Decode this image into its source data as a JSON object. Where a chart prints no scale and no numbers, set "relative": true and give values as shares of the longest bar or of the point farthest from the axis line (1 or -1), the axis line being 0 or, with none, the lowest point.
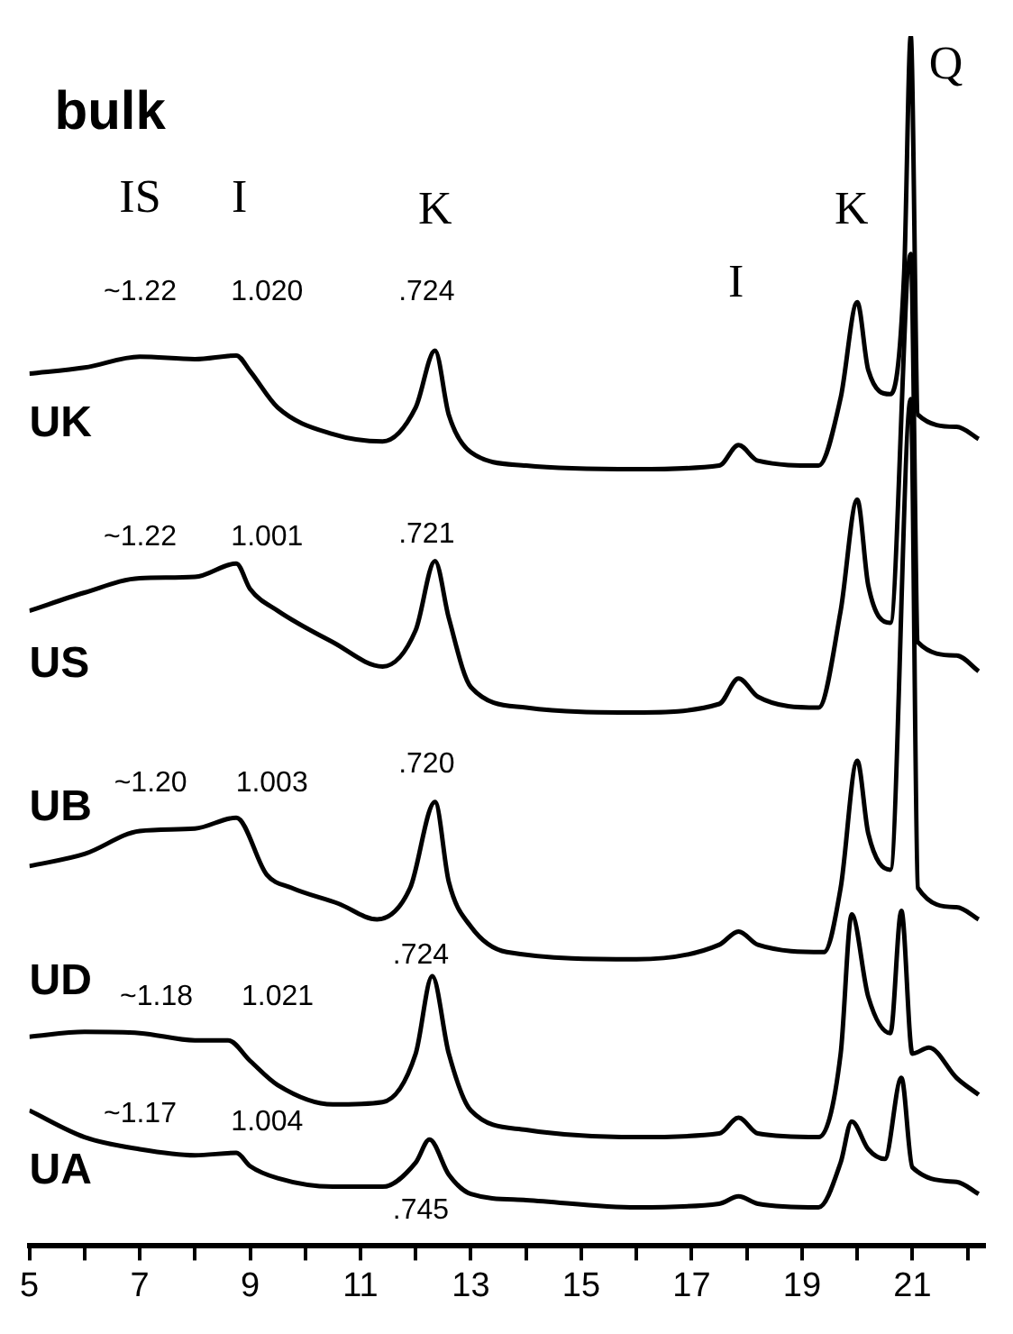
{
  "chart_data": {
    "type": "line",
    "title": "bulk",
    "relative": true,
    "legend": false,
    "grid": false,
    "marker": "none",
    "line_style": "solid",
    "tick_labels": "x",
    "xlim": [
      5,
      22.3
    ],
    "xticks": [
      5,
      {
        "value": 6,
        "label": null
      },
      7,
      {
        "value": 8,
        "label": null
      },
      9,
      {
        "value": 10,
        "label": null
      },
      11,
      {
        "value": 12,
        "label": null
      },
      13,
      {
        "value": 14,
        "label": null
      },
      15,
      {
        "value": 16,
        "label": null
      },
      17,
      {
        "value": 18,
        "label": null
      },
      19,
      {
        "value": 20,
        "label": null
      },
      21,
      {
        "value": 22,
        "label": null
      }
    ],
    "series": [
      {
        "name": "UK",
        "color": "#000000",
        "x": [
          5,
          6,
          7,
          8,
          8.75,
          9,
          9.5,
          10.5,
          11.4,
          12,
          12.35,
          12.6,
          13,
          14,
          16,
          17.5,
          17.85,
          18.2,
          19.3,
          19.7,
          20,
          20.2,
          20.6,
          20.85,
          20.97,
          21.1,
          21.8,
          22.2
        ],
        "values": [
          0.721,
          0.726,
          0.735,
          0.733,
          0.736,
          0.723,
          0.693,
          0.671,
          0.665,
          0.693,
          0.74,
          0.687,
          0.656,
          0.645,
          0.642,
          0.645,
          0.662,
          0.649,
          0.645,
          0.701,
          0.78,
          0.724,
          0.704,
          0.804,
          1.0,
          0.687,
          0.677,
          0.667
        ]
      },
      {
        "name": "US",
        "color": "#000000",
        "x": [
          5,
          6,
          7,
          8,
          8.75,
          9,
          9.5,
          10.5,
          11.4,
          12,
          12.35,
          12.6,
          13,
          14,
          16,
          17.5,
          17.85,
          18.2,
          19.3,
          19.7,
          20,
          20.2,
          20.6,
          20.97,
          21.1,
          21.8,
          22.2
        ],
        "values": [
          0.525,
          0.54,
          0.552,
          0.553,
          0.564,
          0.543,
          0.525,
          0.499,
          0.479,
          0.509,
          0.566,
          0.519,
          0.462,
          0.445,
          0.441,
          0.448,
          0.469,
          0.454,
          0.445,
          0.525,
          0.617,
          0.546,
          0.515,
          0.82,
          0.499,
          0.488,
          0.475
        ]
      },
      {
        "name": "UB",
        "color": "#000000",
        "x": [
          5,
          6,
          7,
          8,
          8.75,
          9.3,
          9.75,
          10.6,
          11.3,
          11.9,
          12.35,
          12.6,
          13,
          13.65,
          16,
          17.5,
          17.85,
          18.2,
          19.4,
          19.7,
          20,
          20.2,
          20.6,
          20.97,
          21.1,
          21.8,
          22.2
        ],
        "values": [
          0.314,
          0.324,
          0.343,
          0.345,
          0.354,
          0.307,
          0.296,
          0.283,
          0.27,
          0.296,
          0.367,
          0.301,
          0.264,
          0.243,
          0.237,
          0.249,
          0.26,
          0.249,
          0.243,
          0.296,
          0.401,
          0.341,
          0.311,
          0.7,
          0.296,
          0.28,
          0.27
        ]
      },
      {
        "name": "UD",
        "color": "#000000",
        "x": [
          5,
          6,
          7,
          8,
          8.6,
          9,
          9.5,
          10.5,
          11.4,
          12,
          12.3,
          12.6,
          13,
          14,
          16,
          17.5,
          17.85,
          18.2,
          19.3,
          19.7,
          19.9,
          20.2,
          20.6,
          20.8,
          21,
          21.3,
          21.8,
          22.2
        ],
        "values": [
          0.173,
          0.177,
          0.176,
          0.17,
          0.17,
          0.153,
          0.133,
          0.117,
          0.119,
          0.159,
          0.223,
          0.159,
          0.112,
          0.096,
          0.09,
          0.093,
          0.106,
          0.093,
          0.09,
          0.159,
          0.274,
          0.206,
          0.176,
          0.277,
          0.159,
          0.164,
          0.139,
          0.125
        ]
      },
      {
        "name": "UA",
        "color": "#000000",
        "x": [
          5,
          6,
          7,
          8,
          8.75,
          9,
          9.5,
          10.5,
          11.4,
          12,
          12.25,
          12.6,
          13,
          14,
          16,
          17.5,
          17.85,
          18.2,
          19.3,
          19.7,
          19.9,
          20.2,
          20.5,
          20.8,
          21,
          21.8,
          22.2
        ],
        "values": [
          0.112,
          0.09,
          0.08,
          0.075,
          0.077,
          0.066,
          0.056,
          0.049,
          0.049,
          0.069,
          0.088,
          0.059,
          0.043,
          0.038,
          0.032,
          0.035,
          0.041,
          0.035,
          0.032,
          0.069,
          0.103,
          0.08,
          0.072,
          0.139,
          0.065,
          0.053,
          0.043
        ]
      }
    ],
    "annotations": [
      "IS",
      "I",
      "K",
      "I",
      "K",
      "Q",
      "~1.22",
      "1.020",
      ".724",
      "~1.22",
      "1.001",
      ".721",
      "~1.20",
      "1.003",
      ".720",
      "~1.18",
      "1.021",
      ".724",
      "~1.17",
      "1.004",
      ".745"
    ]
  }
}
